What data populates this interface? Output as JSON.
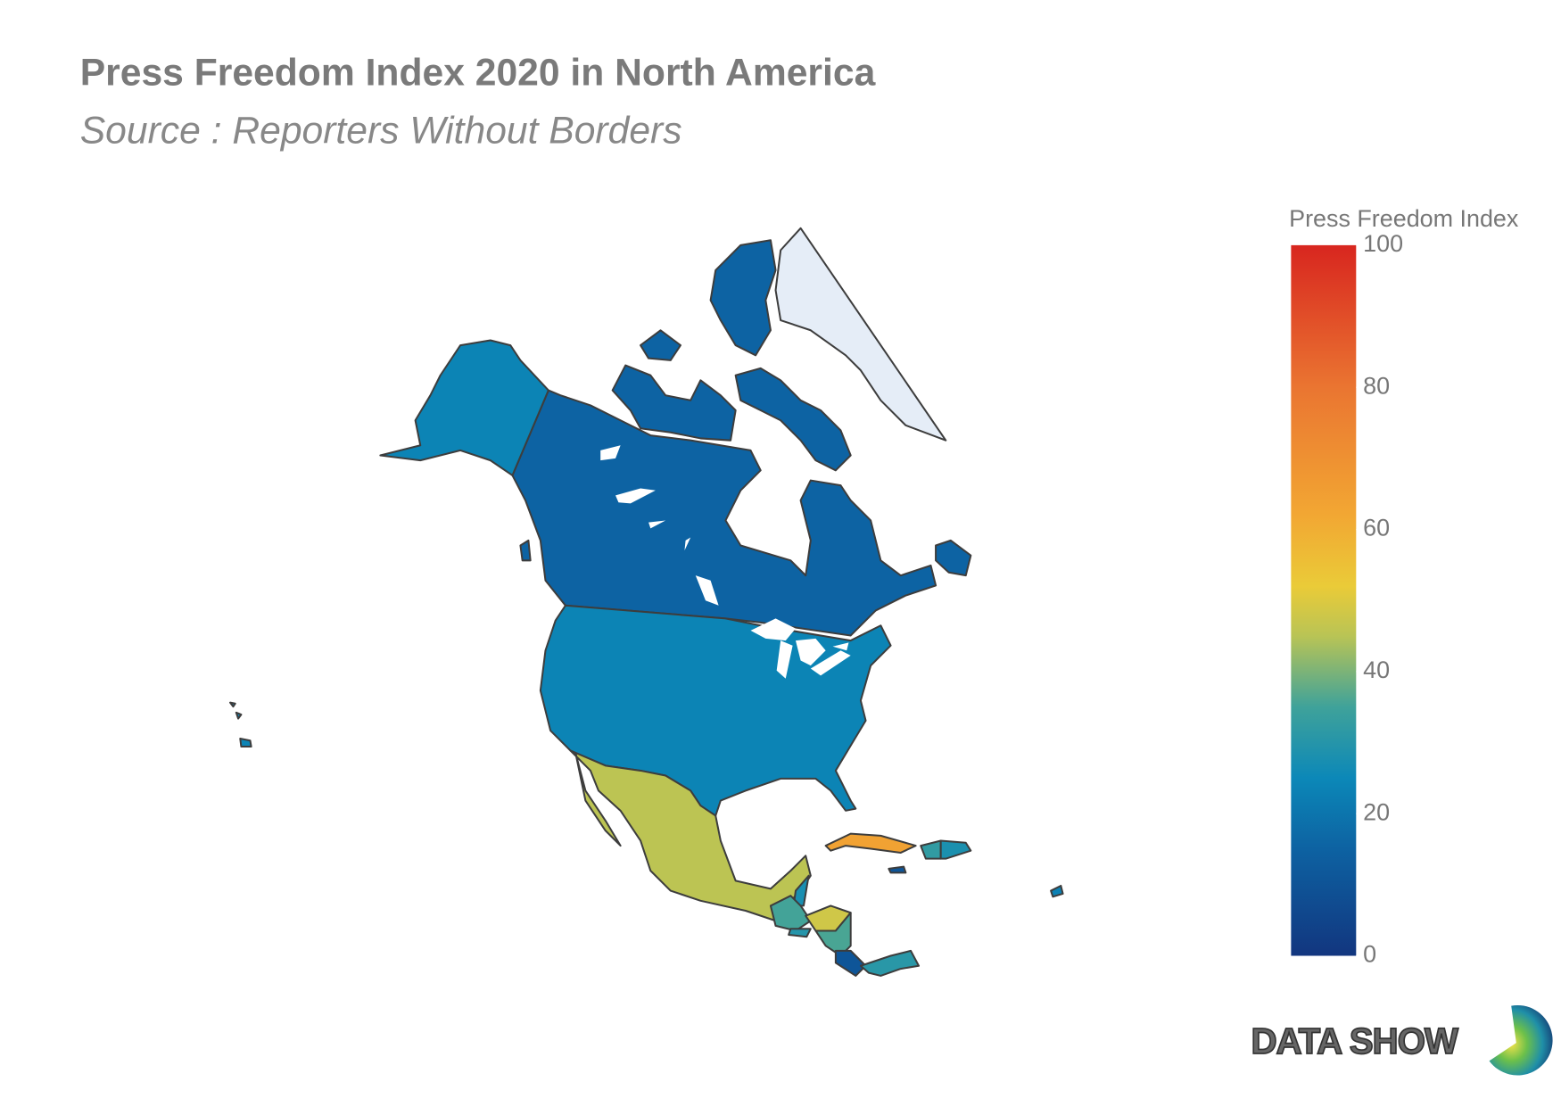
{
  "chart_data": {
    "type": "choropleth",
    "title": "Press Freedom Index 2020 in North America",
    "subtitle": "Source : Reporters Without Borders",
    "colorbar_title": "Press Freedom Index",
    "values": [
      15.29,
      23.85,
      null,
      45.45,
      27.5,
      35.33,
      48.2,
      29.81,
      35.81,
      10.53,
      30.59,
      63.81,
      10.51,
      32.19,
      27.9,
      23.22
    ],
    "zlim": [
      0,
      100
    ],
    "zticks": [
      0,
      20,
      40,
      60,
      80,
      100
    ],
    "colorscale": [
      [
        0,
        "#12367f"
      ],
      [
        15,
        "#0d62a2"
      ],
      [
        25,
        "#0c88b8"
      ],
      [
        35,
        "#3fa29a"
      ],
      [
        45,
        "#b9c455"
      ],
      [
        52,
        "#eacb38"
      ],
      [
        62,
        "#f2a733"
      ],
      [
        80,
        "#ea7531"
      ],
      [
        100,
        "#d8261f"
      ]
    ],
    "missing_color": "#e5edf7",
    "logo": "DATA SHOW"
  }
}
